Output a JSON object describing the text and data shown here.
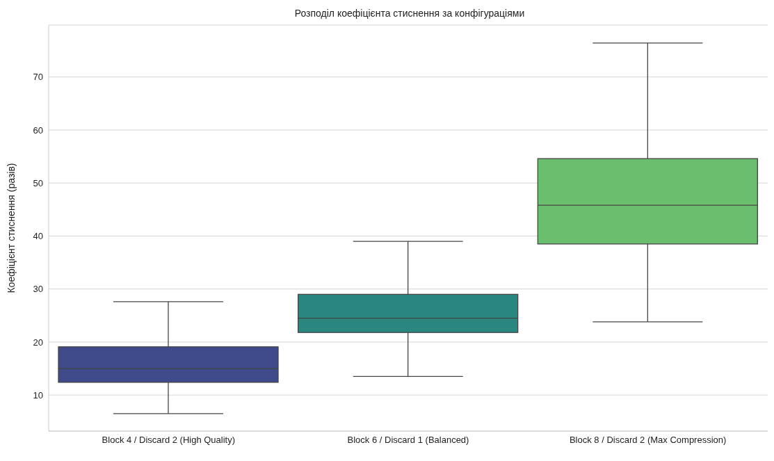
{
  "chart_data": {
    "type": "box",
    "title": "Розподіл коефіцієнта стиснення за конфігураціями",
    "ylabel": "Коефіцієнт стиснення (разів)",
    "categories": [
      "Block 4 / Discard 2 (High Quality)",
      "Block 6 / Discard 1 (Balanced)",
      "Block 8 / Discard 2 (Max Compression)"
    ],
    "colors": [
      "#3e4a89",
      "#2a8780",
      "#6abe6e"
    ],
    "boxes": [
      {
        "low": 6.5,
        "q1": 12.4,
        "median": 15.0,
        "q3": 19.1,
        "high": 27.6
      },
      {
        "low": 13.5,
        "q1": 21.8,
        "median": 24.5,
        "q3": 29.0,
        "high": 39.0
      },
      {
        "low": 23.8,
        "q1": 38.5,
        "median": 45.8,
        "q3": 54.6,
        "high": 76.4
      }
    ],
    "ylim": [
      3.2,
      79.8
    ],
    "yticks": [
      10,
      20,
      30,
      40,
      50,
      60,
      70
    ],
    "grid": "y"
  }
}
